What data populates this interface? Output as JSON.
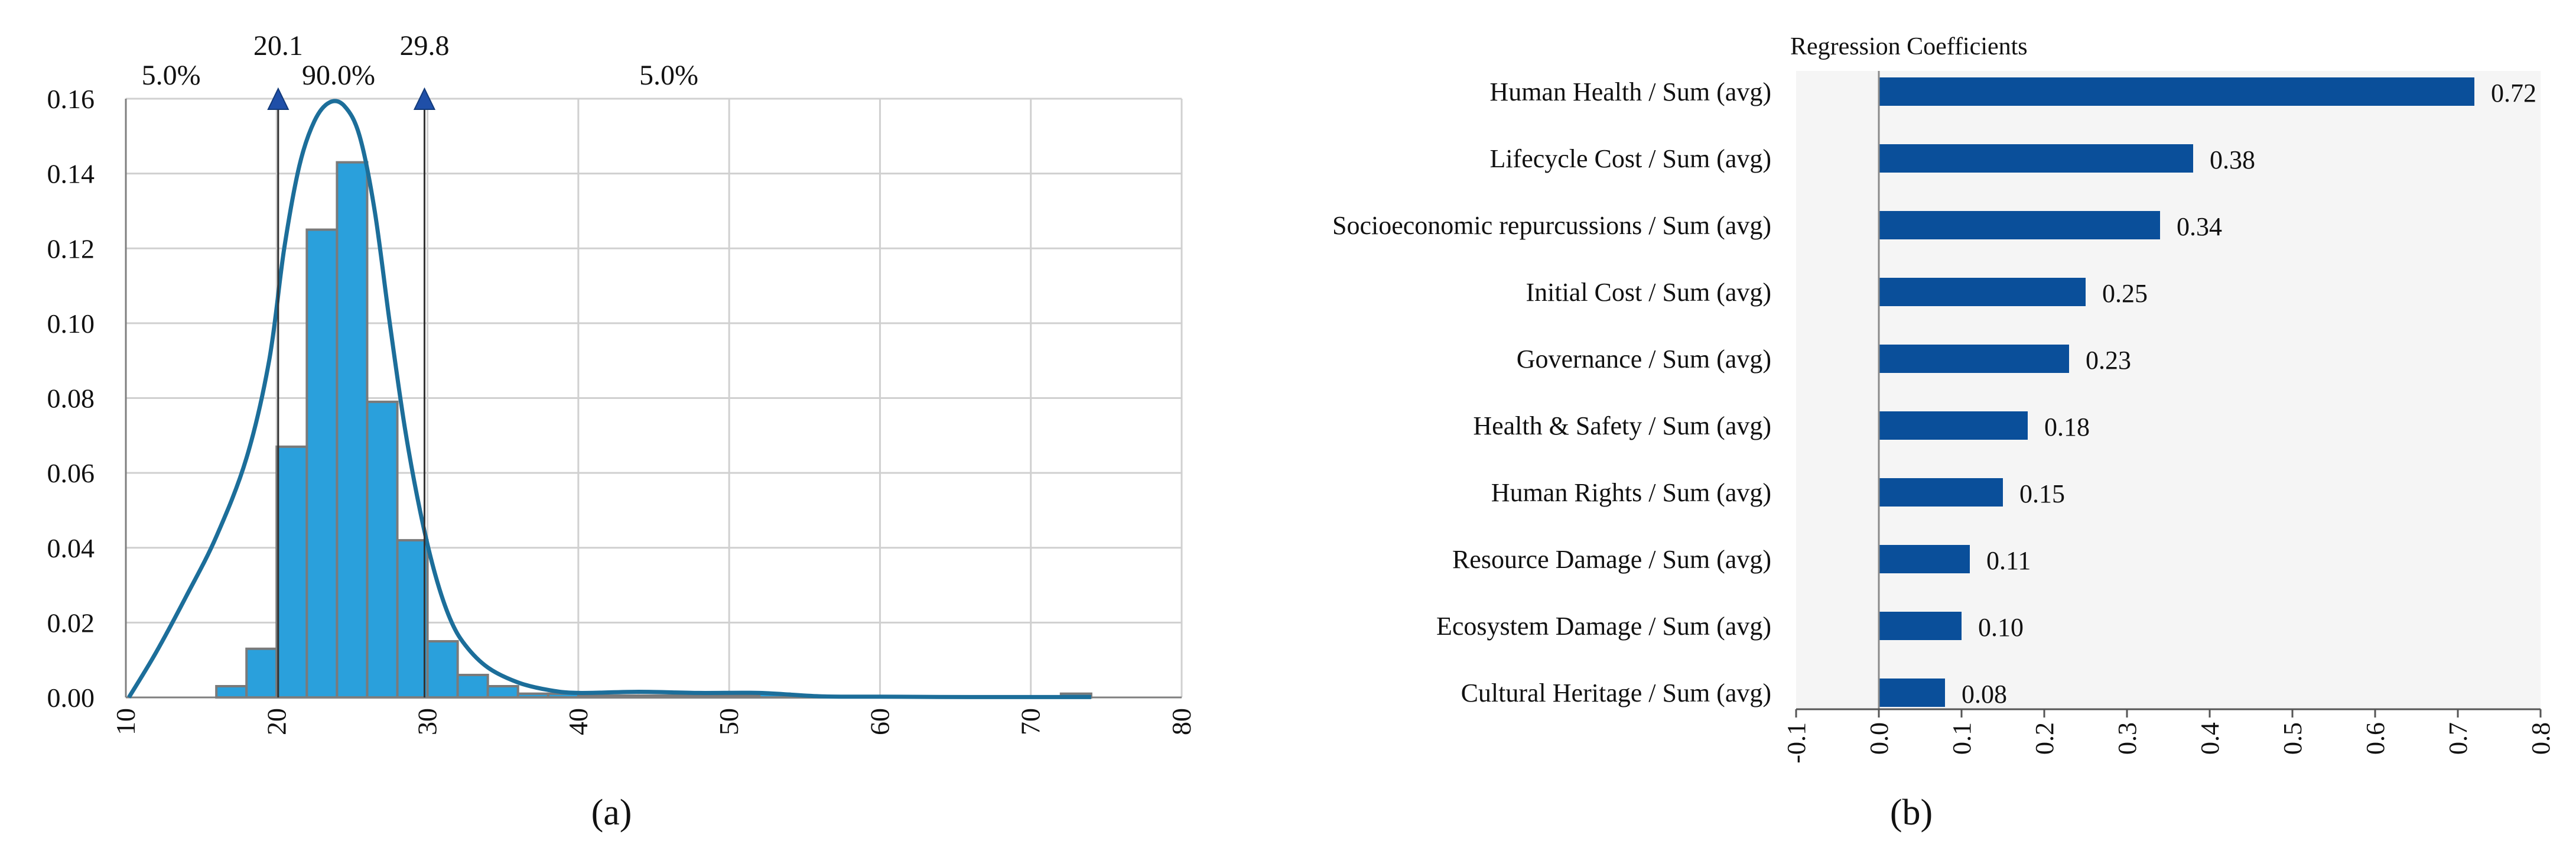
{
  "panel_a_label": "(a)",
  "panel_b_label": "(b)",
  "colors": {
    "hist_bar": "#2aa0dc",
    "hist_bar_edge": "#7a7a7a",
    "curve": "#1c6e9a",
    "marker": "#1f4fa8",
    "coef_bar": "#0a4f9a",
    "plot_bg_b": "#f5f5f5",
    "grid": "#d0d0d0"
  },
  "chart_data": [
    {
      "type": "bar",
      "subtype": "histogram-with-density",
      "title": "",
      "xlabel": "",
      "ylabel": "",
      "xlim": [
        10,
        80
      ],
      "ylim": [
        0,
        0.16
      ],
      "x_ticks": [
        "10",
        "20",
        "30",
        "40",
        "50",
        "60",
        "70",
        "80"
      ],
      "y_ticks": [
        "0.00",
        "0.02",
        "0.04",
        "0.06",
        "0.08",
        "0.10",
        "0.12",
        "0.14",
        "0.16"
      ],
      "grid": true,
      "bin_width": 2,
      "bins": [
        {
          "x0": 16,
          "value": 0.003
        },
        {
          "x0": 18,
          "value": 0.013
        },
        {
          "x0": 20,
          "value": 0.067
        },
        {
          "x0": 22,
          "value": 0.125
        },
        {
          "x0": 24,
          "value": 0.143
        },
        {
          "x0": 26,
          "value": 0.079
        },
        {
          "x0": 28,
          "value": 0.042
        },
        {
          "x0": 30,
          "value": 0.015
        },
        {
          "x0": 32,
          "value": 0.006
        },
        {
          "x0": 34,
          "value": 0.003
        },
        {
          "x0": 36,
          "value": 0.001
        },
        {
          "x0": 38,
          "value": 0.001
        },
        {
          "x0": 40,
          "value": 0.0005
        },
        {
          "x0": 42,
          "value": 0.0005
        },
        {
          "x0": 44,
          "value": 0.0005
        },
        {
          "x0": 46,
          "value": 0.0005
        },
        {
          "x0": 48,
          "value": 0.0005
        },
        {
          "x0": 50,
          "value": 0.0005
        },
        {
          "x0": 52,
          "value": 0.001
        },
        {
          "x0": 54,
          "value": 0.0005
        },
        {
          "x0": 56,
          "value": 0.0003
        },
        {
          "x0": 58,
          "value": 0.0003
        },
        {
          "x0": 60,
          "value": 0.0003
        },
        {
          "x0": 62,
          "value": 0.0003
        },
        {
          "x0": 64,
          "value": 0.0003
        },
        {
          "x0": 66,
          "value": 0.0003
        },
        {
          "x0": 68,
          "value": 0.0003
        },
        {
          "x0": 70,
          "value": 0.0003
        },
        {
          "x0": 72,
          "value": 0.001
        }
      ],
      "density_curve": [
        [
          10.2,
          0.0
        ],
        [
          12,
          0.012
        ],
        [
          14,
          0.027
        ],
        [
          16,
          0.043
        ],
        [
          18,
          0.064
        ],
        [
          19.5,
          0.09
        ],
        [
          20.5,
          0.12
        ],
        [
          21.5,
          0.142
        ],
        [
          22.5,
          0.154
        ],
        [
          23.5,
          0.159
        ],
        [
          24.5,
          0.158
        ],
        [
          25.5,
          0.15
        ],
        [
          26.5,
          0.13
        ],
        [
          27.5,
          0.1
        ],
        [
          28.5,
          0.072
        ],
        [
          29.5,
          0.05
        ],
        [
          30.5,
          0.033
        ],
        [
          31.5,
          0.021
        ],
        [
          32.5,
          0.014
        ],
        [
          34,
          0.008
        ],
        [
          36,
          0.004
        ],
        [
          38,
          0.002
        ],
        [
          40,
          0.0012
        ],
        [
          44,
          0.0015
        ],
        [
          48,
          0.0012
        ],
        [
          52,
          0.0012
        ],
        [
          56,
          0.0003
        ],
        [
          60,
          0.0002
        ],
        [
          66,
          0.0001
        ],
        [
          72,
          0.0001
        ],
        [
          74,
          0.0001
        ]
      ],
      "markers": [
        {
          "label": "20.1",
          "x": 20.1
        },
        {
          "label": "29.8",
          "x": 29.8
        }
      ],
      "region_labels": [
        {
          "label": "5.0%",
          "x": 13
        },
        {
          "label": "90.0%",
          "x": 24.1
        },
        {
          "label": "5.0%",
          "x": 46
        }
      ]
    },
    {
      "type": "bar",
      "orientation": "horizontal",
      "title": "Regression Coefficients",
      "xlabel": "",
      "ylabel": "",
      "xlim": [
        -0.1,
        0.8
      ],
      "x_ticks": [
        "-0.1",
        "0.0",
        "0.1",
        "0.2",
        "0.3",
        "0.4",
        "0.5",
        "0.6",
        "0.7",
        "0.8"
      ],
      "grid": false,
      "categories": [
        "Human Health / Sum (avg)",
        "Lifecycle Cost / Sum (avg)",
        "Socioeconomic repurcussions / Sum (avg)",
        "Initial Cost / Sum (avg)",
        "Governance / Sum (avg)",
        "Health & Safety / Sum (avg)",
        "Human Rights / Sum (avg)",
        "Resource Damage / Sum (avg)",
        "Ecosystem Damage / Sum (avg)",
        "Cultural Heritage / Sum (avg)"
      ],
      "values": [
        0.72,
        0.38,
        0.34,
        0.25,
        0.23,
        0.18,
        0.15,
        0.11,
        0.1,
        0.08
      ],
      "value_labels": [
        "0.72",
        "0.38",
        "0.34",
        "0.25",
        "0.23",
        "0.18",
        "0.15",
        "0.11",
        "0.10",
        "0.08"
      ]
    }
  ]
}
